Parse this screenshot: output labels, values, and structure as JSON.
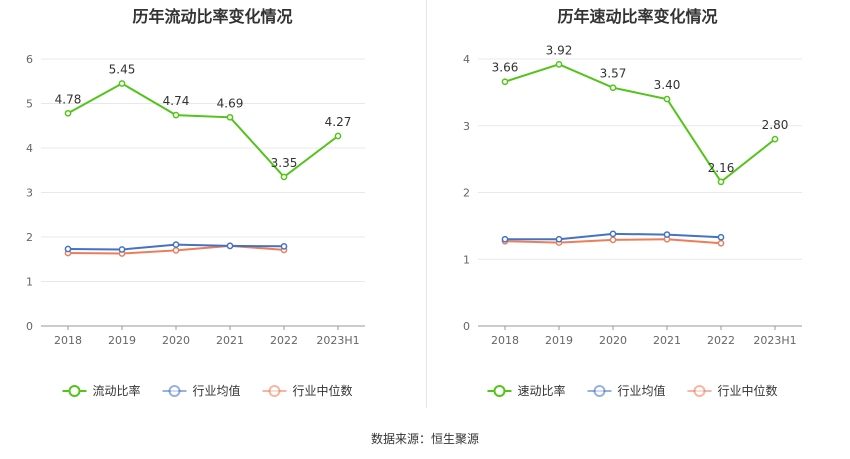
{
  "charts": [
    {
      "title": "历年流动比率变化情况",
      "chart_data": {
        "type": "line",
        "title": "历年流动比率变化情况",
        "categories": [
          "2018",
          "2019",
          "2020",
          "2021",
          "2022",
          "2023H1"
        ],
        "ylim": [
          0,
          6
        ],
        "yticks": [
          0,
          1,
          2,
          3,
          4,
          5,
          6
        ],
        "grid": true,
        "legend_position": "bottom",
        "series": [
          {
            "name": "流动比率",
            "color": "#52c41a",
            "values": [
              4.78,
              5.45,
              4.74,
              4.69,
              3.35,
              4.27
            ],
            "labels": [
              "4.78",
              "5.45",
              "4.74",
              "4.69",
              "3.35",
              "4.27"
            ]
          },
          {
            "name": "行业均值",
            "color": "#4472c4",
            "values": [
              1.73,
              1.72,
              1.83,
              1.8,
              1.79,
              null
            ]
          },
          {
            "name": "行业中位数",
            "color": "#ed7d5a",
            "values": [
              1.64,
              1.63,
              1.7,
              1.8,
              1.71,
              null
            ]
          }
        ]
      }
    },
    {
      "title": "历年速动比率变化情况",
      "chart_data": {
        "type": "line",
        "title": "历年速动比率变化情况",
        "categories": [
          "2018",
          "2019",
          "2020",
          "2021",
          "2022",
          "2023H1"
        ],
        "ylim": [
          0,
          4
        ],
        "yticks": [
          0,
          1,
          2,
          3,
          4
        ],
        "grid": true,
        "legend_position": "bottom",
        "series": [
          {
            "name": "速动比率",
            "color": "#52c41a",
            "values": [
              3.66,
              3.92,
              3.57,
              3.4,
              2.16,
              2.8
            ],
            "labels": [
              "3.66",
              "3.92",
              "3.57",
              "3.40",
              "2.16",
              "2.80"
            ]
          },
          {
            "name": "行业均值",
            "color": "#4472c4",
            "values": [
              1.3,
              1.3,
              1.38,
              1.37,
              1.33,
              null
            ]
          },
          {
            "name": "行业中位数",
            "color": "#ed7d5a",
            "values": [
              1.27,
              1.25,
              1.29,
              1.3,
              1.24,
              null
            ]
          }
        ]
      }
    }
  ],
  "source": "数据来源：恒生聚源"
}
